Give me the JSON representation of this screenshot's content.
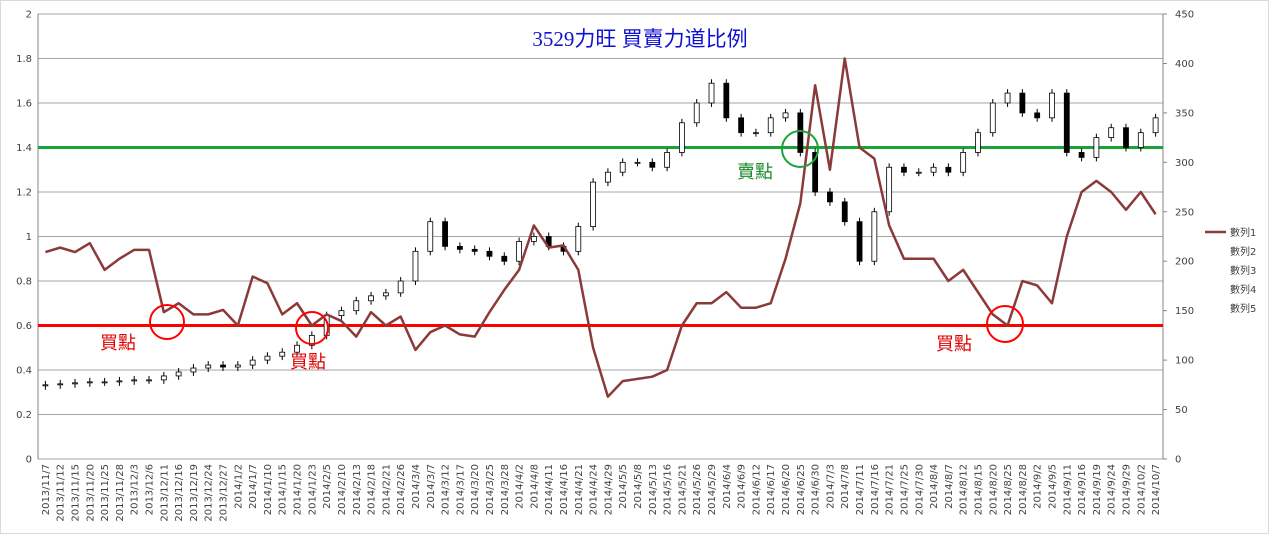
{
  "chart_data": {
    "type": "candlestick",
    "title": "3529力旺 買賣力道比例",
    "categories": [
      "2013/11/7",
      "2013/11/12",
      "2013/11/15",
      "2013/11/20",
      "2013/11/25",
      "2013/11/28",
      "2013/12/3",
      "2013/12/6",
      "2013/12/11",
      "2013/12/16",
      "2013/12/19",
      "2013/12/24",
      "2013/12/27",
      "2014/1/2",
      "2014/1/7",
      "2014/1/10",
      "2014/1/15",
      "2014/1/20",
      "2014/1/23",
      "2014/2/5",
      "2014/2/10",
      "2014/2/13",
      "2014/2/18",
      "2014/2/21",
      "2014/2/26",
      "2014/3/4",
      "2014/3/7",
      "2014/3/12",
      "2014/3/17",
      "2014/3/20",
      "2014/3/25",
      "2014/3/28",
      "2014/4/2",
      "2014/4/8",
      "2014/4/11",
      "2014/4/16",
      "2014/4/21",
      "2014/4/24",
      "2014/4/29",
      "2014/5/5",
      "2014/5/8",
      "2014/5/13",
      "2014/5/16",
      "2014/5/21",
      "2014/5/26",
      "2014/5/29",
      "2014/6/4",
      "2014/6/9",
      "2014/6/12",
      "2014/6/17",
      "2014/6/20",
      "2014/6/25",
      "2014/6/30",
      "2014/7/3",
      "2014/7/8",
      "2014/7/11",
      "2014/7/16",
      "2014/7/21",
      "2014/7/25",
      "2014/7/30",
      "2014/8/4",
      "2014/8/7",
      "2014/8/12",
      "2014/8/15",
      "2014/8/20",
      "2014/8/25",
      "2014/8/28",
      "2014/9/2",
      "2014/9/5",
      "2014/9/11",
      "2014/9/16",
      "2014/9/19",
      "2014/9/24",
      "2014/9/29",
      "2014/10/2",
      "2014/10/7"
    ],
    "series": [
      {
        "name": "數列1",
        "type": "line",
        "color": "#8b3a3a",
        "values": [
          0.93,
          0.95,
          0.93,
          0.97,
          0.85,
          0.9,
          0.94,
          0.94,
          0.66,
          0.7,
          0.65,
          0.65,
          0.67,
          0.6,
          0.82,
          0.79,
          0.65,
          0.7,
          0.6,
          0.65,
          0.62,
          0.55,
          0.66,
          0.6,
          0.64,
          0.49,
          0.57,
          0.6,
          0.56,
          0.55,
          0.66,
          0.76,
          0.85,
          1.05,
          0.95,
          0.96,
          0.85,
          0.5,
          0.28,
          0.35,
          0.36,
          0.37,
          0.4,
          0.6,
          0.7,
          0.7,
          0.75,
          0.68,
          0.68,
          0.7,
          0.9,
          1.15,
          1.68,
          1.3,
          1.8,
          1.4,
          1.35,
          1.05,
          0.9,
          0.9,
          0.9,
          0.8,
          0.85,
          0.75,
          0.65,
          0.6,
          0.8,
          0.78,
          0.7,
          1.0,
          1.2,
          1.25,
          1.2,
          1.12,
          1.2,
          1.1
        ]
      },
      {
        "name": "數列2",
        "axis": "y2",
        "values": [
          74,
          75,
          76,
          77,
          78,
          78,
          79,
          80,
          80,
          84,
          88,
          92,
          95,
          93,
          95,
          100,
          104,
          108,
          115,
          125,
          145,
          150,
          160,
          165,
          168,
          180,
          210,
          240,
          215,
          212,
          210,
          205,
          200,
          220,
          225,
          215,
          210,
          235,
          280,
          290,
          300,
          300,
          295,
          310,
          340,
          360,
          380,
          345,
          330,
          330,
          345,
          350,
          310,
          270,
          260,
          240,
          200,
          250,
          295,
          290,
          290,
          295,
          290,
          310,
          330,
          360,
          370,
          350,
          345,
          370,
          310,
          305,
          325,
          335,
          315,
          330
        ]
      },
      {
        "name": "數列3",
        "axis": "y2",
        "values": [
          79,
          80,
          81,
          82,
          82,
          83,
          84,
          84,
          88,
          92,
          96,
          99,
          99,
          99,
          104,
          108,
          112,
          119,
          129,
          149,
          154,
          164,
          169,
          172,
          184,
          214,
          244,
          244,
          219,
          216,
          214,
          209,
          224,
          229,
          229,
          219,
          239,
          284,
          294,
          304,
          304,
          304,
          314,
          344,
          364,
          384,
          384,
          349,
          334,
          349,
          354,
          354,
          314,
          274,
          264,
          244,
          254,
          299,
          299,
          294,
          299,
          299,
          314,
          334,
          364,
          374,
          374,
          354,
          374,
          374,
          314,
          329,
          339,
          339,
          334,
          349
        ]
      },
      {
        "name": "數列4",
        "axis": "y2",
        "values": [
          70,
          71,
          72,
          73,
          74,
          74,
          75,
          76,
          76,
          80,
          84,
          88,
          89,
          89,
          91,
          96,
          100,
          104,
          111,
          121,
          141,
          146,
          156,
          161,
          164,
          176,
          206,
          211,
          208,
          206,
          201,
          196,
          196,
          216,
          211,
          206,
          206,
          231,
          276,
          286,
          296,
          291,
          291,
          306,
          336,
          356,
          341,
          326,
          326,
          326,
          341,
          306,
          266,
          256,
          236,
          196,
          196,
          246,
          286,
          286,
          286,
          286,
          286,
          306,
          326,
          356,
          346,
          341,
          341,
          306,
          301,
          301,
          321,
          311,
          311,
          326
        ]
      },
      {
        "name": "數列5",
        "axis": "y2",
        "values": [
          75,
          76,
          77,
          78,
          78,
          79,
          80,
          80,
          84,
          88,
          92,
          95,
          93,
          95,
          100,
          104,
          108,
          115,
          125,
          145,
          150,
          160,
          165,
          168,
          180,
          210,
          240,
          215,
          212,
          210,
          205,
          200,
          220,
          225,
          215,
          210,
          235,
          280,
          290,
          300,
          300,
          295,
          310,
          340,
          360,
          380,
          345,
          330,
          330,
          345,
          350,
          310,
          270,
          260,
          240,
          200,
          250,
          295,
          290,
          290,
          295,
          290,
          310,
          330,
          360,
          370,
          350,
          345,
          370,
          310,
          305,
          325,
          335,
          315,
          330,
          345
        ]
      }
    ],
    "ylim": [
      0,
      2
    ],
    "yticks": [
      0,
      0.2,
      0.4,
      0.6,
      0.8,
      1,
      1.2,
      1.4,
      1.6,
      1.8,
      2
    ],
    "y2lim": [
      0,
      450
    ],
    "y2ticks": [
      0,
      50,
      100,
      150,
      200,
      250,
      300,
      350,
      400,
      450
    ],
    "grid": true,
    "legend": "right",
    "reference_lines": [
      {
        "value": 1.4,
        "color": "#1aa33a"
      },
      {
        "value": 0.6,
        "color": "#ff0000"
      }
    ],
    "annotations": [
      "買點",
      "買點",
      "賣點",
      "買點"
    ]
  }
}
